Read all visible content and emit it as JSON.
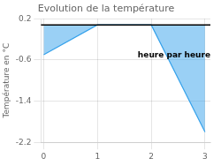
{
  "chart_data": {
    "type": "line",
    "title": "Evolution de la température",
    "ylabel": "Température en °C",
    "x": [
      0,
      1,
      2,
      3
    ],
    "values": [
      -0.5,
      0.08,
      0.08,
      -2.0
    ],
    "baseline": 0.08,
    "annotations": [
      {
        "text": "heure par heure",
        "x": 1.75,
        "y": -0.55
      }
    ],
    "xlim": [
      -0.05,
      3.1
    ],
    "xticks": [
      0,
      1,
      2,
      3
    ],
    "ylim": [
      -2.2,
      0.2
    ],
    "yticks": [
      0.2,
      -0.6,
      -1.4,
      -2.2
    ],
    "grid": true
  }
}
